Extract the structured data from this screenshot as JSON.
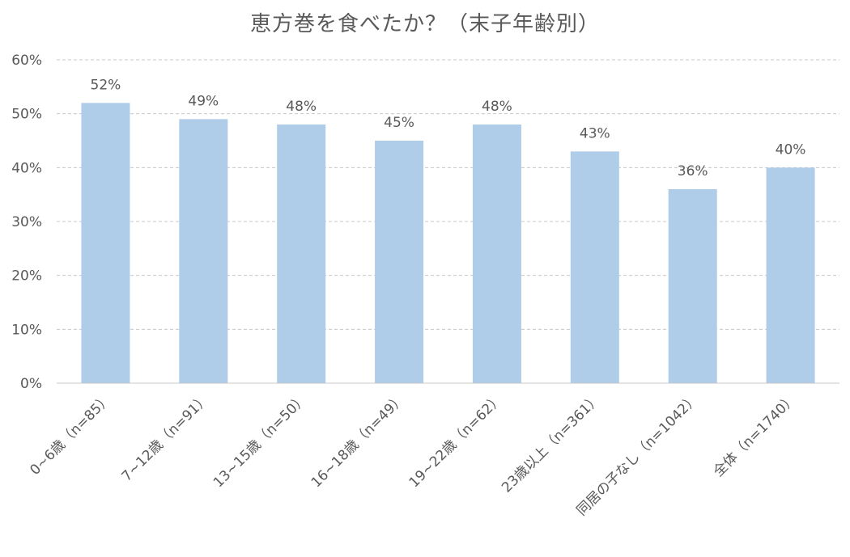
{
  "chart_data": {
    "type": "bar",
    "title": "恵方巻を食べたか？（末子年齢別）",
    "categories": [
      "0~6歳（n=85）",
      "7~12歳（n=91）",
      "13~15歳（n=50）",
      "16~18歳（n=49）",
      "19~22歳（n=62）",
      "23歳以上（n=361）",
      "同居の子なし（n=1042）",
      "全体（n=1740）"
    ],
    "values": [
      52,
      49,
      48,
      45,
      48,
      43,
      36,
      40
    ],
    "data_labels": [
      "52%",
      "49%",
      "48%",
      "45%",
      "48%",
      "43%",
      "36%",
      "40%"
    ],
    "yticks": [
      0,
      10,
      20,
      30,
      40,
      50,
      60
    ],
    "ytick_labels": [
      "0%",
      "10%",
      "20%",
      "30%",
      "40%",
      "50%",
      "60%"
    ],
    "ylim": [
      0,
      60
    ],
    "xlabel": "",
    "ylabel": "",
    "grid": true,
    "legend": "none",
    "colors": {
      "bar": "#afcce9",
      "grid": "#c8c8c8",
      "axis": "#c8c8c8",
      "text": "#595959"
    }
  }
}
